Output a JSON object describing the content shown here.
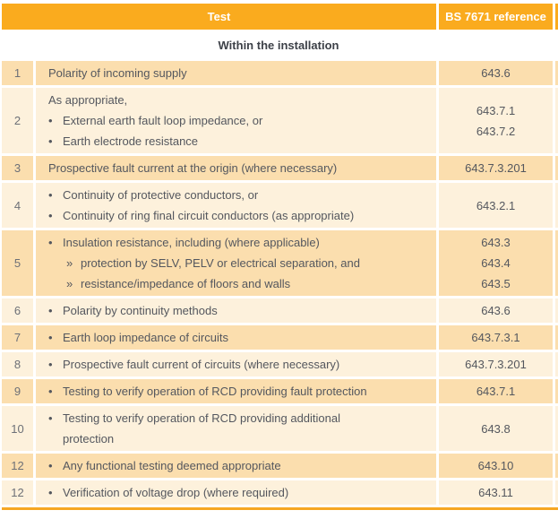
{
  "colors": {
    "header_orange": "#FAAB1E",
    "row_peach": "#FBDEAE",
    "row_cream": "#FDF1DC",
    "bottom_border_orange": "#F6A723",
    "body_text": "#54575E",
    "row_number_text": "#6D7077",
    "section_title_text": "#3D4148",
    "header_text": "#FFFFFF"
  },
  "table": {
    "header": {
      "test_label": "Test",
      "reference_label": "BS 7671 reference"
    },
    "section_title": "Within the installation",
    "bullet_glyph": "•",
    "sub_bullet_glyph": "»",
    "rows": [
      {
        "num": "1",
        "shade": "peach",
        "lines": [
          {
            "type": "plain",
            "text": "Polarity of incoming supply"
          }
        ],
        "refs": [
          "643.6"
        ]
      },
      {
        "num": "2",
        "shade": "cream",
        "lines": [
          {
            "type": "plain",
            "text": "As appropriate,"
          },
          {
            "type": "bullet",
            "text": "External earth fault loop impedance, or"
          },
          {
            "type": "bullet",
            "text": "Earth electrode resistance"
          }
        ],
        "refs": [
          "643.7.1",
          "643.7.2"
        ]
      },
      {
        "num": "3",
        "shade": "peach",
        "lines": [
          {
            "type": "plain",
            "text": "Prospective fault current at the origin (where necessary)"
          }
        ],
        "refs": [
          "643.7.3.201"
        ]
      },
      {
        "num": "4",
        "shade": "cream",
        "lines": [
          {
            "type": "bullet",
            "text": "Continuity of protective conductors, or"
          },
          {
            "type": "bullet",
            "text": "Continuity of ring final circuit conductors (as appropriate)"
          }
        ],
        "refs": [
          "643.2.1"
        ]
      },
      {
        "num": "5",
        "shade": "peach",
        "lines": [
          {
            "type": "bullet",
            "text": "Insulation resistance, including (where applicable)"
          },
          {
            "type": "sub",
            "text": "protection by SELV, PELV or electrical separation, and"
          },
          {
            "type": "sub",
            "text": "resistance/impedance of floors and walls"
          }
        ],
        "refs": [
          "643.3",
          "643.4",
          "643.5"
        ]
      },
      {
        "num": "6",
        "shade": "cream",
        "lines": [
          {
            "type": "bullet",
            "text": "Polarity by continuity methods"
          }
        ],
        "refs": [
          "643.6"
        ]
      },
      {
        "num": "7",
        "shade": "peach",
        "lines": [
          {
            "type": "bullet",
            "text": "Earth loop impedance of circuits"
          }
        ],
        "refs": [
          "643.7.3.1"
        ]
      },
      {
        "num": "8",
        "shade": "cream",
        "lines": [
          {
            "type": "bullet",
            "text": "Prospective fault current of circuits (where necessary)"
          }
        ],
        "refs": [
          "643.7.3.201"
        ]
      },
      {
        "num": "9",
        "shade": "peach",
        "lines": [
          {
            "type": "bullet",
            "text": "Testing to verify operation of RCD providing fault protection"
          }
        ],
        "refs": [
          "643.7.1"
        ]
      },
      {
        "num": "10",
        "shade": "cream",
        "lines": [
          {
            "type": "bullet",
            "text": "Testing to verify operation of RCD providing additional\nprotection"
          }
        ],
        "refs": [
          "643.8"
        ]
      },
      {
        "num": "12",
        "shade": "peach",
        "lines": [
          {
            "type": "bullet",
            "text": "Any functional testing deemed appropriate"
          }
        ],
        "refs": [
          "643.10"
        ]
      },
      {
        "num": "12",
        "shade": "cream",
        "lines": [
          {
            "type": "bullet",
            "text": "Verification of voltage drop (where required)"
          }
        ],
        "refs": [
          "643.11"
        ]
      }
    ]
  }
}
